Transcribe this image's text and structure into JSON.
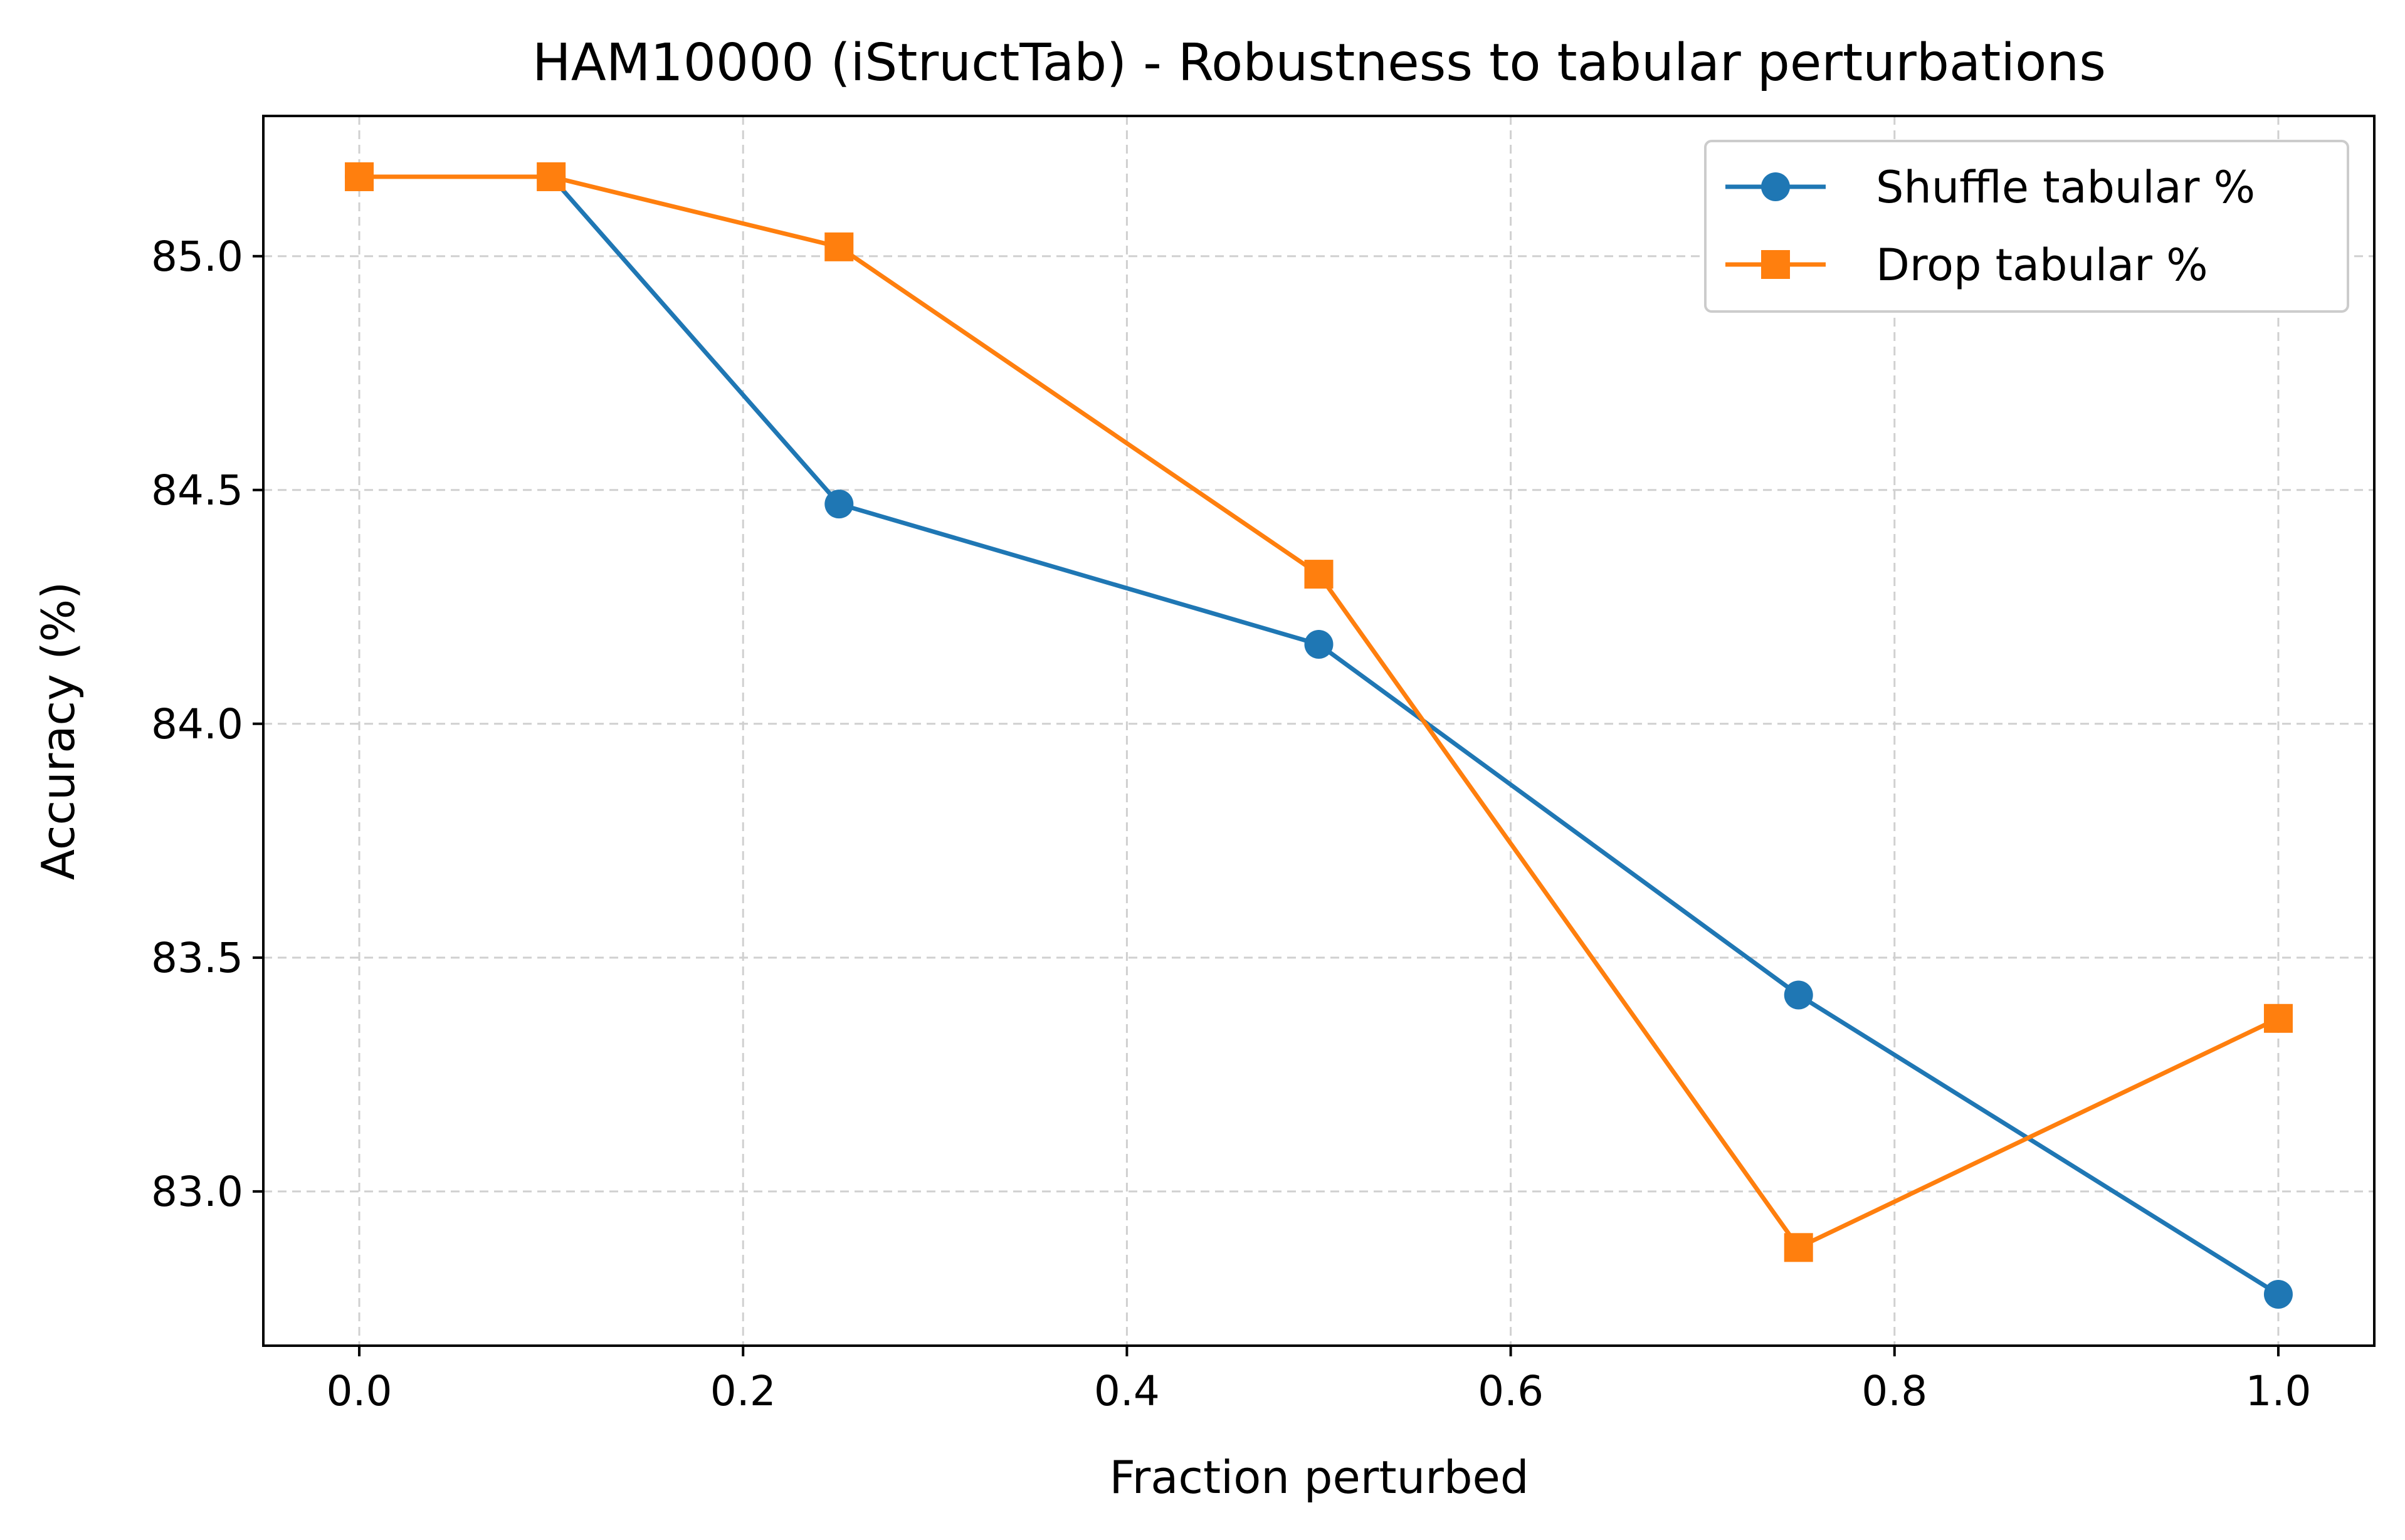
{
  "chart_data": {
    "type": "line",
    "title": "HAM10000 (iStructTab) - Robustness to tabular perturbations",
    "xlabel": "Fraction perturbed",
    "ylabel": "Accuracy (%)",
    "xlim": [
      -0.05,
      1.05
    ],
    "ylim": [
      82.67,
      85.3
    ],
    "xticks": [
      0.0,
      0.2,
      0.4,
      0.6,
      0.8,
      1.0
    ],
    "xtick_labels": [
      "0.0",
      "0.2",
      "0.4",
      "0.6",
      "0.8",
      "1.0"
    ],
    "yticks": [
      83.0,
      83.5,
      84.0,
      84.5,
      85.0
    ],
    "ytick_labels": [
      "83.0",
      "83.5",
      "84.0",
      "84.5",
      "85.0"
    ],
    "grid": true,
    "legend_position": "top-right",
    "series": [
      {
        "name": "Shuffle tabular %",
        "color": "#1f77b4",
        "marker": "circle",
        "x": [
          0.0,
          0.1,
          0.25,
          0.5,
          0.75,
          1.0
        ],
        "y": [
          85.17,
          85.17,
          84.47,
          84.17,
          83.42,
          82.78
        ]
      },
      {
        "name": "Drop tabular %",
        "color": "#ff7f0e",
        "marker": "square",
        "x": [
          0.0,
          0.1,
          0.25,
          0.5,
          0.75,
          1.0
        ],
        "y": [
          85.17,
          85.17,
          85.02,
          84.32,
          82.88,
          83.37
        ]
      }
    ]
  }
}
